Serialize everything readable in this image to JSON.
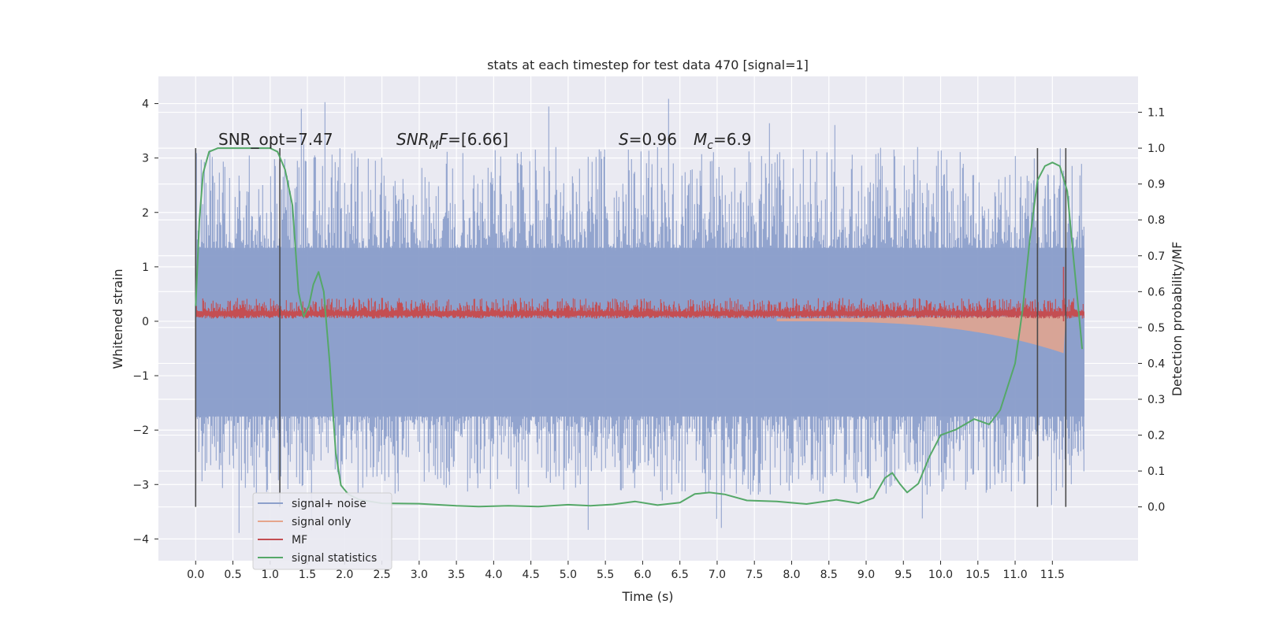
{
  "chart_data": {
    "type": "line",
    "title": "stats at each timestep for test data 470 [signal=1]",
    "xlabel": "Time (s)",
    "ylabel": "Whitened strain",
    "y2label": "Detection probability/MF",
    "xlim": [
      -0.5,
      12.65
    ],
    "ylim": [
      -4.4,
      4.5
    ],
    "y2lim": [
      -0.15,
      1.2
    ],
    "x_ticks": [
      "0.0",
      "0.5",
      "1.0",
      "1.5",
      "2.0",
      "2.5",
      "3.0",
      "3.5",
      "4.0",
      "4.5",
      "5.0",
      "5.5",
      "6.0",
      "6.5",
      "7.0",
      "7.5",
      "8.0",
      "8.5",
      "9.0",
      "9.5",
      "10.0",
      "10.5",
      "11.0",
      "11.5"
    ],
    "y_ticks": [
      "4",
      "3",
      "2",
      "1",
      "0",
      "−1",
      "−2",
      "−3",
      "−4"
    ],
    "y2_ticks": [
      "1.1",
      "1.0",
      "0.9",
      "0.8",
      "0.7",
      "0.6",
      "0.5",
      "0.4",
      "0.3",
      "0.2",
      "0.1",
      "0.0"
    ],
    "grid": true,
    "legend_position": "lower-left",
    "annotations": {
      "snr_opt": "SNR_opt=7.47",
      "snr_mf_italic": "SNR",
      "snr_mf_sub": "M",
      "snr_mf_f": "F",
      "snr_mf_value": "=[6.66]",
      "s_italic": "S",
      "s_value": "=0.96",
      "mc_italic": "M",
      "mc_sub": "c",
      "mc_value": "=6.9"
    },
    "vertical_lines_x": [
      0.0,
      1.13,
      11.3,
      11.68
    ],
    "series": [
      {
        "name": "signal+ noise",
        "color": "#8da0cb",
        "kind": "noise_band",
        "x_range": [
          0.0,
          11.93
        ],
        "typical_range": [
          -2.0,
          2.0
        ],
        "extreme_range": [
          -3.9,
          4.1
        ]
      },
      {
        "name": "signal only",
        "color": "#e5a58c",
        "kind": "chirp",
        "start_x": 7.8,
        "end_x": 11.68,
        "end_amplitude": -0.6
      },
      {
        "name": "MF",
        "color": "#c44e52",
        "kind": "mf_band",
        "typical_range": [
          0.0,
          0.35
        ],
        "peak_x": 11.65,
        "peak_value": 1.0
      },
      {
        "name": "signal statistics",
        "color": "#55a868",
        "axis": "right",
        "points": [
          [
            0.0,
            0.56
          ],
          [
            0.05,
            0.8
          ],
          [
            0.1,
            0.93
          ],
          [
            0.18,
            0.99
          ],
          [
            0.3,
            1.0
          ],
          [
            0.5,
            1.0
          ],
          [
            0.8,
            1.0
          ],
          [
            1.0,
            1.0
          ],
          [
            1.1,
            0.99
          ],
          [
            1.2,
            0.94
          ],
          [
            1.3,
            0.84
          ],
          [
            1.38,
            0.6
          ],
          [
            1.45,
            0.53
          ],
          [
            1.52,
            0.56
          ],
          [
            1.58,
            0.62
          ],
          [
            1.65,
            0.655
          ],
          [
            1.72,
            0.6
          ],
          [
            1.8,
            0.4
          ],
          [
            1.88,
            0.15
          ],
          [
            1.95,
            0.06
          ],
          [
            2.05,
            0.035
          ],
          [
            2.2,
            0.02
          ],
          [
            2.5,
            0.01
          ],
          [
            3.0,
            0.009
          ],
          [
            3.5,
            0.003
          ],
          [
            3.8,
            0.001
          ],
          [
            4.2,
            0.003
          ],
          [
            4.6,
            0.001
          ],
          [
            5.0,
            0.006
          ],
          [
            5.3,
            0.003
          ],
          [
            5.6,
            0.007
          ],
          [
            5.9,
            0.015
          ],
          [
            6.2,
            0.005
          ],
          [
            6.5,
            0.012
          ],
          [
            6.7,
            0.036
          ],
          [
            6.9,
            0.04
          ],
          [
            7.1,
            0.035
          ],
          [
            7.4,
            0.018
          ],
          [
            7.8,
            0.015
          ],
          [
            8.2,
            0.008
          ],
          [
            8.6,
            0.02
          ],
          [
            8.9,
            0.01
          ],
          [
            9.1,
            0.025
          ],
          [
            9.25,
            0.08
          ],
          [
            9.35,
            0.095
          ],
          [
            9.45,
            0.065
          ],
          [
            9.55,
            0.04
          ],
          [
            9.7,
            0.065
          ],
          [
            9.85,
            0.14
          ],
          [
            10.0,
            0.2
          ],
          [
            10.2,
            0.215
          ],
          [
            10.45,
            0.245
          ],
          [
            10.65,
            0.23
          ],
          [
            10.8,
            0.27
          ],
          [
            11.0,
            0.4
          ],
          [
            11.1,
            0.55
          ],
          [
            11.2,
            0.75
          ],
          [
            11.3,
            0.91
          ],
          [
            11.4,
            0.95
          ],
          [
            11.5,
            0.96
          ],
          [
            11.6,
            0.95
          ],
          [
            11.7,
            0.88
          ],
          [
            11.78,
            0.7
          ],
          [
            11.85,
            0.55
          ],
          [
            11.9,
            0.44
          ]
        ]
      }
    ]
  }
}
